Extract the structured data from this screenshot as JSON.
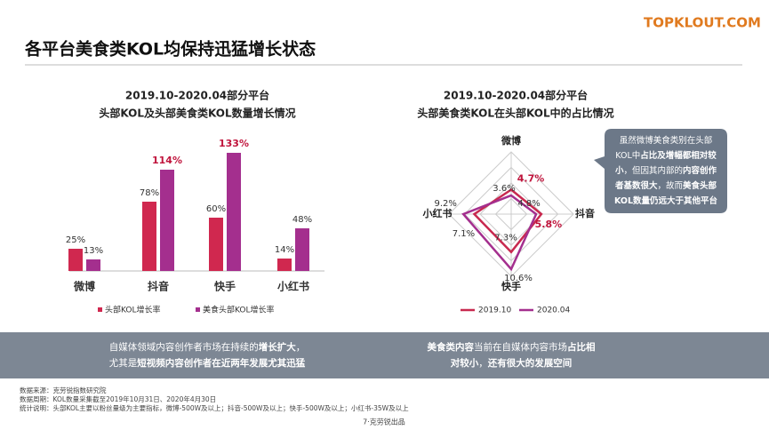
{
  "title": "各平台美食类KOL均保持迅猛增长状态",
  "logo": "TOPKLOUT.COM",
  "chart_data": [
    {
      "type": "bar",
      "title": [
        "2019.10-2020.04部分平台",
        "头部KOL及头部美食类KOL数量增长情况"
      ],
      "categories": [
        "微博",
        "抖音",
        "快手",
        "小红书"
      ],
      "highlight_color": "#c0143c",
      "series": [
        {
          "name": "头部KOL增长率",
          "color": "#d0284f",
          "values": [
            25,
            78,
            60,
            14
          ],
          "value_labels": [
            "25%",
            "78%",
            "60%",
            "14%"
          ],
          "highlight": []
        },
        {
          "name": "美食头部KOL增长率",
          "color": "#a42f8e",
          "values": [
            13,
            114,
            133,
            48
          ],
          "value_labels": [
            "13%",
            "114%",
            "133%",
            "48%"
          ],
          "highlight": [
            1,
            2
          ]
        }
      ]
    },
    {
      "type": "radar",
      "title": [
        "2019.10-2020.04部分平台",
        "头部美食类KOL在头部KOL中的占比情况"
      ],
      "categories": [
        "微博",
        "抖音",
        "快手",
        "小红书"
      ],
      "highlight_color": "#c0143c",
      "series": [
        {
          "name": "2019.10",
          "color": "#c8294f",
          "values": [
            4.7,
            5.8,
            7.3,
            7.1
          ],
          "value_labels": [
            "4.7%",
            "5.8%",
            "7.3%",
            "7.1%"
          ],
          "highlight": [
            0,
            1
          ]
        },
        {
          "name": "2020.04",
          "color": "#a42f8e",
          "values": [
            3.6,
            4.8,
            10.6,
            9.2
          ],
          "value_labels": [
            "3.6%",
            "4.8%",
            "10.6%",
            "9.2%"
          ],
          "highlight": []
        }
      ]
    }
  ],
  "callout": [
    [
      {
        "text": "虽然微博美食类别在头部",
        "bold": false
      }
    ],
    [
      {
        "text": "KOL中",
        "bold": false
      },
      {
        "text": "占比及增幅都相对较",
        "bold": true
      }
    ],
    [
      {
        "text": "小",
        "bold": true
      },
      {
        "text": "，但因其内部的",
        "bold": false
      },
      {
        "text": "内容创作",
        "bold": true
      }
    ],
    [
      {
        "text": "者基数很大",
        "bold": true
      },
      {
        "text": "，故而",
        "bold": false
      },
      {
        "text": "美食头部",
        "bold": true
      }
    ],
    [
      {
        "text": "KOL数量仍远大于其他平台",
        "bold": true
      }
    ]
  ],
  "banner": {
    "left": [
      [
        {
          "text": "自媒体领域内容创作者市场在持续的",
          "bold": false
        },
        {
          "text": "增长扩大",
          "bold": true
        },
        {
          "text": "，",
          "bold": false
        }
      ],
      [
        {
          "text": "尤其是",
          "bold": false
        },
        {
          "text": "短视频内容创作者在近两年发展尤其迅猛",
          "bold": true
        }
      ]
    ],
    "right": [
      [
        {
          "text": "美食类内容",
          "bold": true
        },
        {
          "text": "当前在自媒体内容市场",
          "bold": false
        },
        {
          "text": "占比相",
          "bold": true
        }
      ],
      [
        {
          "text": "对较小",
          "bold": true
        },
        {
          "text": "，",
          "bold": false
        },
        {
          "text": "还有很大的发展空间",
          "bold": true
        }
      ]
    ]
  },
  "footer": [
    "数据来源：克劳锐指数研究院",
    "数据周期：KOL数量采集截至2019年10月31日、2020年4月30日",
    "统计说明：头部KOL主要以粉丝量级为主要指标，微博-500W及以上；抖音-500W及以上；快手-500W及以上；小红书-35W及以上"
  ],
  "page": "7·克劳锐出品"
}
